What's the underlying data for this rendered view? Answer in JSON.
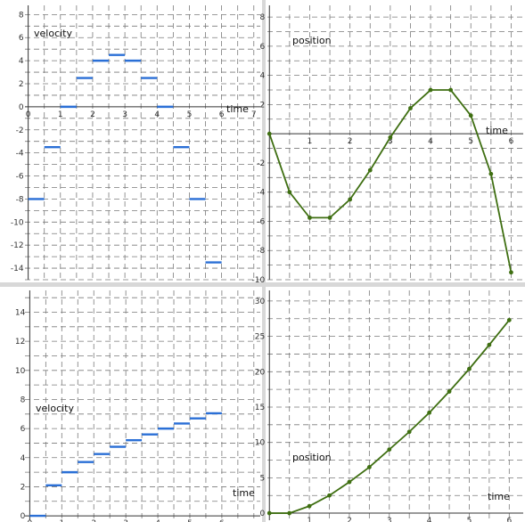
{
  "colors": {
    "velocity": "#2a6fd6",
    "position": "#3f6f12",
    "grid": "#7a7a7a",
    "axis": "#333333",
    "separator": "#d8d8d8"
  },
  "chart_data": [
    {
      "type": "bar",
      "id": "velocity-top",
      "chart_kind": "step",
      "xlabel": "time",
      "ylabel": "velocity",
      "xlim": [
        -0.1,
        7.2
      ],
      "ylim": [
        -15,
        8.8
      ],
      "x_ticks": [
        0,
        1,
        2,
        3,
        4,
        5,
        6,
        7
      ],
      "y_ticks": [
        8,
        6,
        4,
        2,
        0,
        -2,
        -4,
        -6,
        -8,
        -10,
        -12,
        -14
      ],
      "y_tick_labels": [
        "8",
        "6",
        "4",
        "2",
        "0",
        "-2",
        "-4",
        "-6",
        "-8",
        "-10",
        "-12",
        "-14"
      ],
      "grid": true,
      "segments": [
        {
          "x0": 0.0,
          "x1": 0.5,
          "y": -8
        },
        {
          "x0": 0.5,
          "x1": 1.0,
          "y": -3.5
        },
        {
          "x0": 1.0,
          "x1": 1.5,
          "y": 0
        },
        {
          "x0": 1.5,
          "x1": 2.0,
          "y": 2.5
        },
        {
          "x0": 2.0,
          "x1": 2.5,
          "y": 4
        },
        {
          "x0": 2.5,
          "x1": 3.0,
          "y": 4.5
        },
        {
          "x0": 3.0,
          "x1": 3.5,
          "y": 4
        },
        {
          "x0": 3.5,
          "x1": 4.0,
          "y": 2.5
        },
        {
          "x0": 4.0,
          "x1": 4.5,
          "y": 0
        },
        {
          "x0": 4.5,
          "x1": 5.0,
          "y": -3.5
        },
        {
          "x0": 5.0,
          "x1": 5.5,
          "y": -8
        },
        {
          "x0": 5.5,
          "x1": 6.0,
          "y": -13.5
        }
      ]
    },
    {
      "type": "line",
      "id": "position-top",
      "xlabel": "time",
      "ylabel": "position",
      "xlim": [
        -0.05,
        6.3
      ],
      "ylim": [
        -10,
        8.8
      ],
      "x_ticks": [
        1,
        2,
        3,
        4,
        5,
        6
      ],
      "y_ticks": [
        8,
        6,
        4,
        2,
        -2,
        -4,
        -6,
        -8,
        -10
      ],
      "y_tick_labels": [
        "8",
        "6",
        "4",
        "2",
        "-2",
        "-4",
        "-6",
        "-8",
        "-10"
      ],
      "grid": true,
      "x": [
        0,
        0.5,
        1,
        1.5,
        2,
        2.5,
        3,
        3.5,
        4,
        4.5,
        5,
        5.5,
        6
      ],
      "y": [
        0,
        -4,
        -5.75,
        -5.75,
        -4.5,
        -2.5,
        -0.25,
        1.75,
        3,
        3,
        1.25,
        -2.75,
        -9.5
      ]
    },
    {
      "type": "bar",
      "id": "velocity-bottom",
      "chart_kind": "step",
      "xlabel": "time",
      "ylabel": "velocity",
      "xlim": [
        -0.15,
        7.2
      ],
      "ylim": [
        -0.3,
        15.5
      ],
      "x_ticks": [
        0,
        1,
        2,
        3,
        4,
        5,
        6
      ],
      "y_ticks": [
        14,
        12,
        10,
        8,
        6,
        4,
        2,
        0
      ],
      "y_tick_labels": [
        "14",
        "12",
        "10",
        "8",
        "6",
        "4",
        "2",
        "0"
      ],
      "grid": true,
      "segments": [
        {
          "x0": 0.0,
          "x1": 0.5,
          "y": 0
        },
        {
          "x0": 0.5,
          "x1": 1.0,
          "y": 2.1
        },
        {
          "x0": 1.0,
          "x1": 1.5,
          "y": 3.0
        },
        {
          "x0": 1.5,
          "x1": 2.0,
          "y": 3.7
        },
        {
          "x0": 2.0,
          "x1": 2.5,
          "y": 4.25
        },
        {
          "x0": 2.5,
          "x1": 3.0,
          "y": 4.75
        },
        {
          "x0": 3.0,
          "x1": 3.5,
          "y": 5.2
        },
        {
          "x0": 3.5,
          "x1": 4.0,
          "y": 5.6
        },
        {
          "x0": 4.0,
          "x1": 4.5,
          "y": 6.0
        },
        {
          "x0": 4.5,
          "x1": 5.0,
          "y": 6.35
        },
        {
          "x0": 5.0,
          "x1": 5.5,
          "y": 6.7
        },
        {
          "x0": 5.5,
          "x1": 6.0,
          "y": 7.05
        }
      ]
    },
    {
      "type": "line",
      "id": "position-bottom",
      "xlabel": "time",
      "ylabel": "position",
      "xlim": [
        -0.05,
        6.35
      ],
      "ylim": [
        -1,
        31.5
      ],
      "x_ticks": [
        1,
        2,
        3,
        4,
        5,
        6
      ],
      "y_ticks": [
        30,
        25,
        20,
        15,
        10,
        5,
        0
      ],
      "y_tick_labels": [
        "30",
        "25",
        "20",
        "15",
        "10",
        "5",
        "0"
      ],
      "grid": true,
      "x": [
        0,
        0.5,
        1,
        1.5,
        2,
        2.5,
        3,
        3.5,
        4,
        4.5,
        5,
        5.5,
        6
      ],
      "y": [
        0,
        0,
        1.0,
        2.5,
        4.4,
        6.5,
        9.0,
        11.5,
        14.2,
        17.2,
        20.4,
        23.8,
        27.3
      ]
    }
  ]
}
